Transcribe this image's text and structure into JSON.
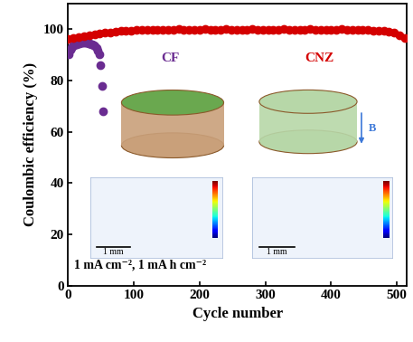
{
  "chart_data": {
    "type": "scatter",
    "xlabel": "Cycle number",
    "ylabel": "Coulombic efficiency (%)",
    "xlim": [
      0,
      515
    ],
    "ylim": [
      0,
      110
    ],
    "xticks": [
      0,
      100,
      200,
      300,
      400,
      500
    ],
    "yticks": [
      0,
      20,
      40,
      60,
      80,
      100
    ],
    "grid": false,
    "series": [
      {
        "name": "CF",
        "color": "#6a2c91",
        "marker": "o",
        "x": [
          1,
          3,
          5,
          7,
          9,
          11,
          13,
          15,
          17,
          19,
          21,
          23,
          25,
          27,
          29,
          31,
          33,
          35,
          37,
          39,
          41,
          43,
          45,
          47,
          49,
          51,
          53
        ],
        "values": [
          90.0,
          92.0,
          92.8,
          93.2,
          93.6,
          94.0,
          94.2,
          94.4,
          94.5,
          94.6,
          94.6,
          94.7,
          94.7,
          94.6,
          94.6,
          94.5,
          94.4,
          94.2,
          94.0,
          93.7,
          93.2,
          92.5,
          91.5,
          90.0,
          86.0,
          78.0,
          68.0
        ]
      },
      {
        "name": "CNZ",
        "color": "#d40000",
        "marker": "o",
        "x": [
          0,
          8,
          16,
          24,
          32,
          40,
          48,
          56,
          64,
          72,
          80,
          88,
          96,
          104,
          112,
          120,
          128,
          136,
          144,
          152,
          160,
          168,
          176,
          184,
          192,
          200,
          208,
          216,
          224,
          232,
          240,
          248,
          256,
          264,
          272,
          280,
          288,
          296,
          304,
          312,
          320,
          328,
          336,
          344,
          352,
          360,
          368,
          376,
          384,
          392,
          400,
          408,
          416,
          424,
          432,
          440,
          448,
          456,
          464,
          472,
          480,
          488,
          496,
          504,
          512
        ],
        "values": [
          96.0,
          96.5,
          96.8,
          97.2,
          97.5,
          97.8,
          98.2,
          98.5,
          98.8,
          99.0,
          99.2,
          99.3,
          99.5,
          99.6,
          99.7,
          99.6,
          99.8,
          99.7,
          99.8,
          99.6,
          99.8,
          99.9,
          99.7,
          99.8,
          99.6,
          99.8,
          99.9,
          99.7,
          99.8,
          99.7,
          99.9,
          99.8,
          99.6,
          99.8,
          99.7,
          99.9,
          99.8,
          99.7,
          99.8,
          99.6,
          99.8,
          99.9,
          99.7,
          99.8,
          99.7,
          99.8,
          99.9,
          99.7,
          99.8,
          99.6,
          99.8,
          99.7,
          99.9,
          99.8,
          99.7,
          99.8,
          99.6,
          99.7,
          99.5,
          99.4,
          99.2,
          99.0,
          98.5,
          97.5,
          96.5
        ]
      }
    ],
    "annotations": {
      "condition": "1 mA cm⁻², 1 mA h cm⁻²",
      "field": "B",
      "scale_bars": [
        "1 mm",
        "1 mm"
      ]
    }
  }
}
